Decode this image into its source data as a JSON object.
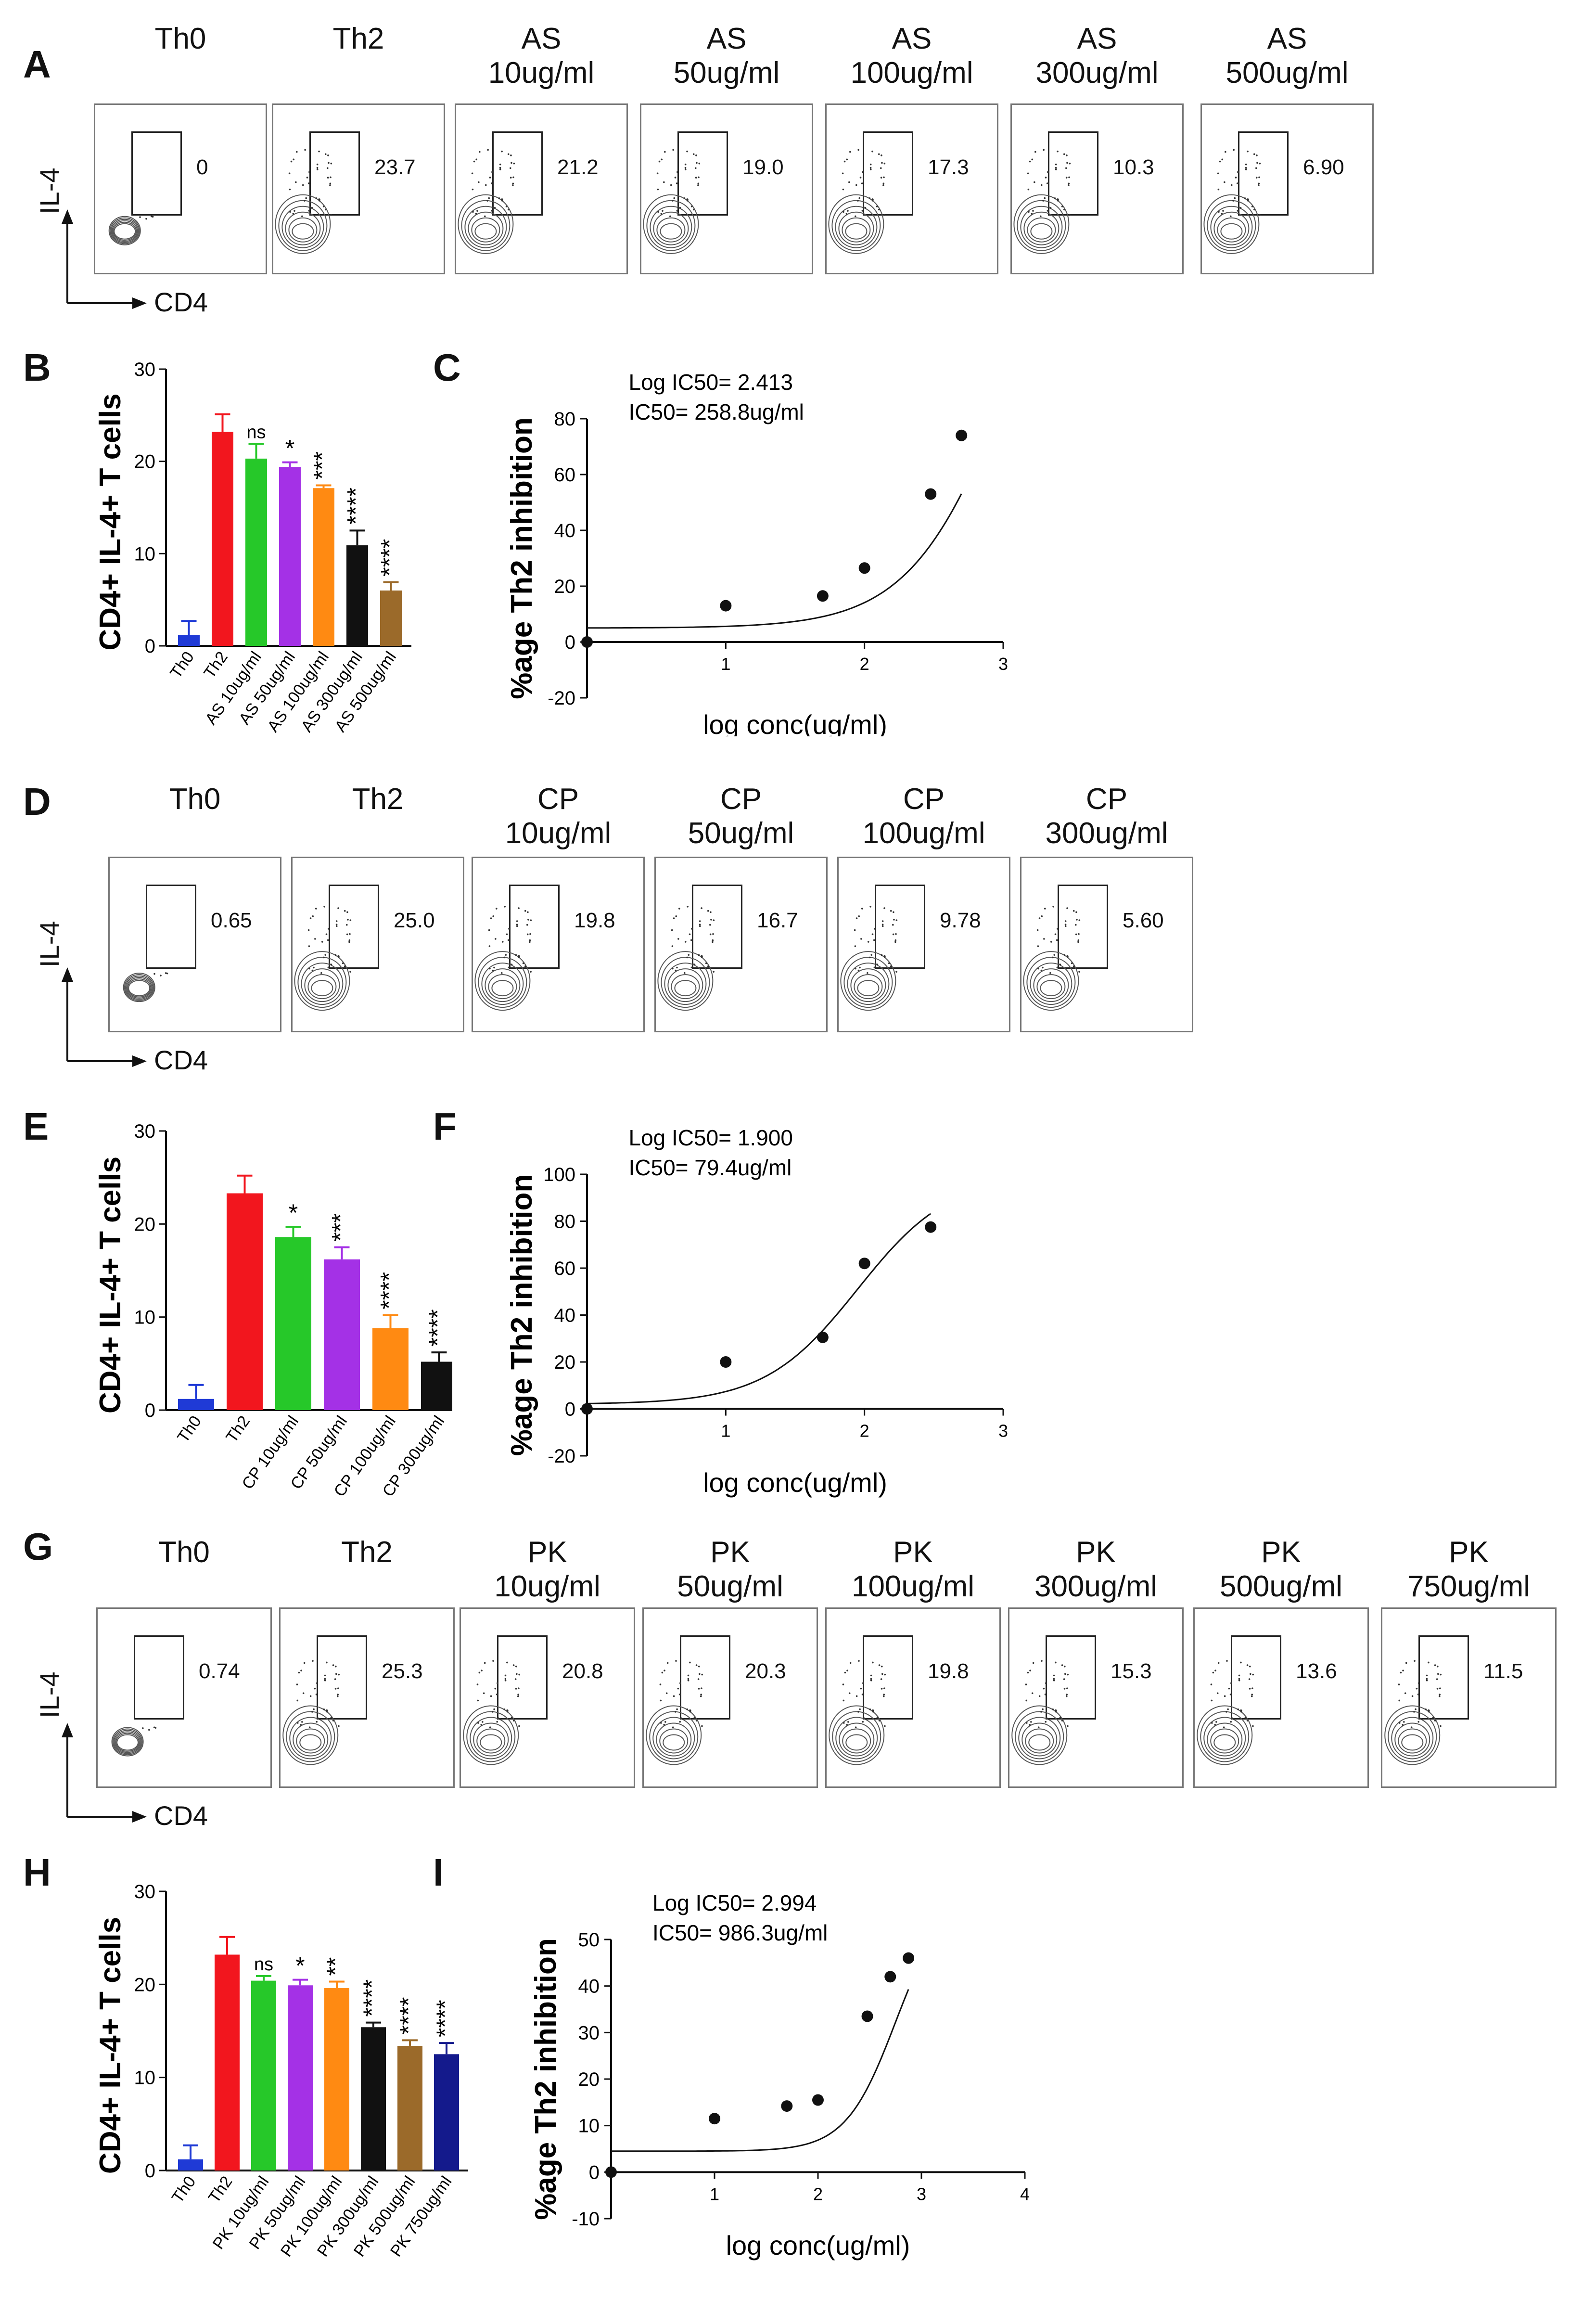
{
  "figure": {
    "letters": [
      "A",
      "B",
      "C",
      "D",
      "E",
      "F",
      "G",
      "H",
      "I"
    ],
    "facs_axis": {
      "y": "IL-4",
      "x": "CD4"
    }
  },
  "facs_rows": [
    {
      "id": "A",
      "labels": [
        "Th0",
        "Th2",
        "AS\n10ug/ml",
        "AS\n50ug/ml",
        "AS\n100ug/ml",
        "AS\n300ug/ml",
        "AS\n500ug/ml"
      ],
      "values": [
        "0",
        "23.7",
        "21.2",
        "19.0",
        "17.3",
        "10.3",
        "6.90"
      ]
    },
    {
      "id": "D",
      "labels": [
        "Th0",
        "Th2",
        "CP\n10ug/ml",
        "CP\n50ug/ml",
        "CP\n100ug/ml",
        "CP\n300ug/ml"
      ],
      "values": [
        "0.65",
        "25.0",
        "19.8",
        "16.7",
        "9.78",
        "5.60"
      ]
    },
    {
      "id": "G",
      "labels": [
        "Th0",
        "Th2",
        "PK\n10ug/ml",
        "PK\n50ug/ml",
        "PK\n100ug/ml",
        "PK\n300ug/ml",
        "PK\n500ug/ml",
        "PK\n750ug/ml"
      ],
      "values": [
        "0.74",
        "25.3",
        "20.8",
        "20.3",
        "19.8",
        "15.3",
        "13.6",
        "11.5"
      ]
    }
  ],
  "colors": {
    "blue": "#1f3ad6",
    "red": "#f2161e",
    "green": "#26c829",
    "purple": "#a431e6",
    "orange": "#ff8a12",
    "black": "#111111",
    "brown": "#9b6a2a",
    "navy": "#141a8c"
  },
  "chart_data": [
    {
      "id": "B",
      "type": "bar",
      "ylabel": "CD4+ IL-4+ T cells",
      "ylim": [
        0,
        30
      ],
      "yticks": [
        "0",
        "10",
        "20",
        "30"
      ],
      "categories": [
        "Th0",
        "Th2",
        "AS 10ug/ml",
        "AS 50ug/ml",
        "AS 100ug/ml",
        "AS 300ug/ml",
        "AS 500ug/ml"
      ],
      "values": [
        1.2,
        23.2,
        20.3,
        19.4,
        17.1,
        10.9,
        6.0
      ],
      "errors": [
        1.5,
        1.9,
        1.6,
        0.5,
        0.3,
        1.6,
        0.9
      ],
      "colors": [
        "#1f3ad6",
        "#f2161e",
        "#26c829",
        "#a431e6",
        "#ff8a12",
        "#111111",
        "#9b6a2a"
      ],
      "significance": [
        "",
        "",
        "ns",
        "*",
        "***",
        "****",
        "****"
      ]
    },
    {
      "id": "C",
      "type": "scatter",
      "annotation": [
        "Log IC50= 2.413",
        "IC50= 258.8ug/ml"
      ],
      "ylabel": "%age Th2 inhibition",
      "xlabel": "log conc(ug/ml)",
      "xlim": [
        0,
        3
      ],
      "ylim": [
        -20,
        80
      ],
      "xticks": [
        "1",
        "2",
        "3"
      ],
      "yticks": [
        "-20",
        "0",
        "20",
        "40",
        "60",
        "80"
      ],
      "x": [
        0,
        1,
        1.699,
        2,
        2.477,
        2.699
      ],
      "y": [
        0,
        13,
        16.5,
        26.5,
        53,
        74
      ],
      "fit": {
        "bottom": 5,
        "top": 180,
        "logIC50": 3.05,
        "hill": 1.2
      }
    },
    {
      "id": "E",
      "type": "bar",
      "ylabel": "CD4+ IL-4+ T cells",
      "ylim": [
        0,
        30
      ],
      "yticks": [
        "0",
        "10",
        "20",
        "30"
      ],
      "categories": [
        "Th0",
        "Th2",
        "CP 10ug/ml",
        "CP 50ug/ml",
        "CP 100ug/ml",
        "CP 300ug/ml"
      ],
      "values": [
        1.2,
        23.3,
        18.6,
        16.2,
        8.8,
        5.2
      ],
      "errors": [
        1.5,
        1.9,
        1.1,
        1.3,
        1.4,
        1.0
      ],
      "colors": [
        "#1f3ad6",
        "#f2161e",
        "#26c829",
        "#a431e6",
        "#ff8a12",
        "#111111"
      ],
      "significance": [
        "",
        "",
        "*",
        "***",
        "****",
        "****"
      ]
    },
    {
      "id": "F",
      "type": "scatter",
      "annotation": [
        "Log IC50= 1.900",
        "IC50= 79.4ug/ml"
      ],
      "ylabel": "%age Th2 inhibition",
      "xlabel": "log conc(ug/ml)",
      "xlim": [
        0,
        3
      ],
      "ylim": [
        -20,
        100
      ],
      "xticks": [
        "1",
        "2",
        "3"
      ],
      "yticks": [
        "-20",
        "0",
        "20",
        "40",
        "60",
        "80",
        "100"
      ],
      "x": [
        0,
        1,
        1.699,
        2,
        2.477
      ],
      "y": [
        0,
        20,
        30.5,
        62,
        77.5
      ],
      "fit": {
        "bottom": 2,
        "top": 100,
        "logIC50": 1.95,
        "hill": 1.3
      }
    },
    {
      "id": "H",
      "type": "bar",
      "ylabel": "CD4+ IL-4+ T cells",
      "ylim": [
        0,
        30
      ],
      "yticks": [
        "0",
        "10",
        "20",
        "30"
      ],
      "categories": [
        "Th0",
        "Th2",
        "PK 10ug/ml",
        "PK 50ug/ml",
        "PK 100ug/ml",
        "PK 300ug/ml",
        "PK 500ug/ml",
        "PK 750ug/ml"
      ],
      "values": [
        1.2,
        23.2,
        20.4,
        19.9,
        19.6,
        15.4,
        13.4,
        12.5
      ],
      "errors": [
        1.5,
        1.9,
        0.5,
        0.6,
        0.7,
        0.5,
        0.6,
        1.2
      ],
      "colors": [
        "#1f3ad6",
        "#f2161e",
        "#26c829",
        "#a431e6",
        "#ff8a12",
        "#111111",
        "#9b6a2a",
        "#141a8c"
      ],
      "significance": [
        "",
        "",
        "ns",
        "*",
        "**",
        "****",
        "****",
        "****"
      ]
    },
    {
      "id": "I",
      "type": "scatter",
      "annotation": [
        "Log IC50= 2.994",
        "IC50= 986.3ug/ml"
      ],
      "ylabel": "%age Th2 inhibition",
      "xlabel": "log conc(ug/ml)",
      "xlim": [
        0,
        4
      ],
      "ylim": [
        -10,
        50
      ],
      "xticks": [
        "1",
        "2",
        "3",
        "4"
      ],
      "yticks": [
        "-10",
        "0",
        "10",
        "20",
        "30",
        "40",
        "50"
      ],
      "x": [
        0,
        1,
        1.699,
        2,
        2.477,
        2.699,
        2.875
      ],
      "y": [
        0,
        11.5,
        14.2,
        15.5,
        33.5,
        42,
        46
      ],
      "fit": {
        "bottom": 4.5,
        "top": 60,
        "logIC50": 2.75,
        "hill": 1.8
      }
    }
  ]
}
